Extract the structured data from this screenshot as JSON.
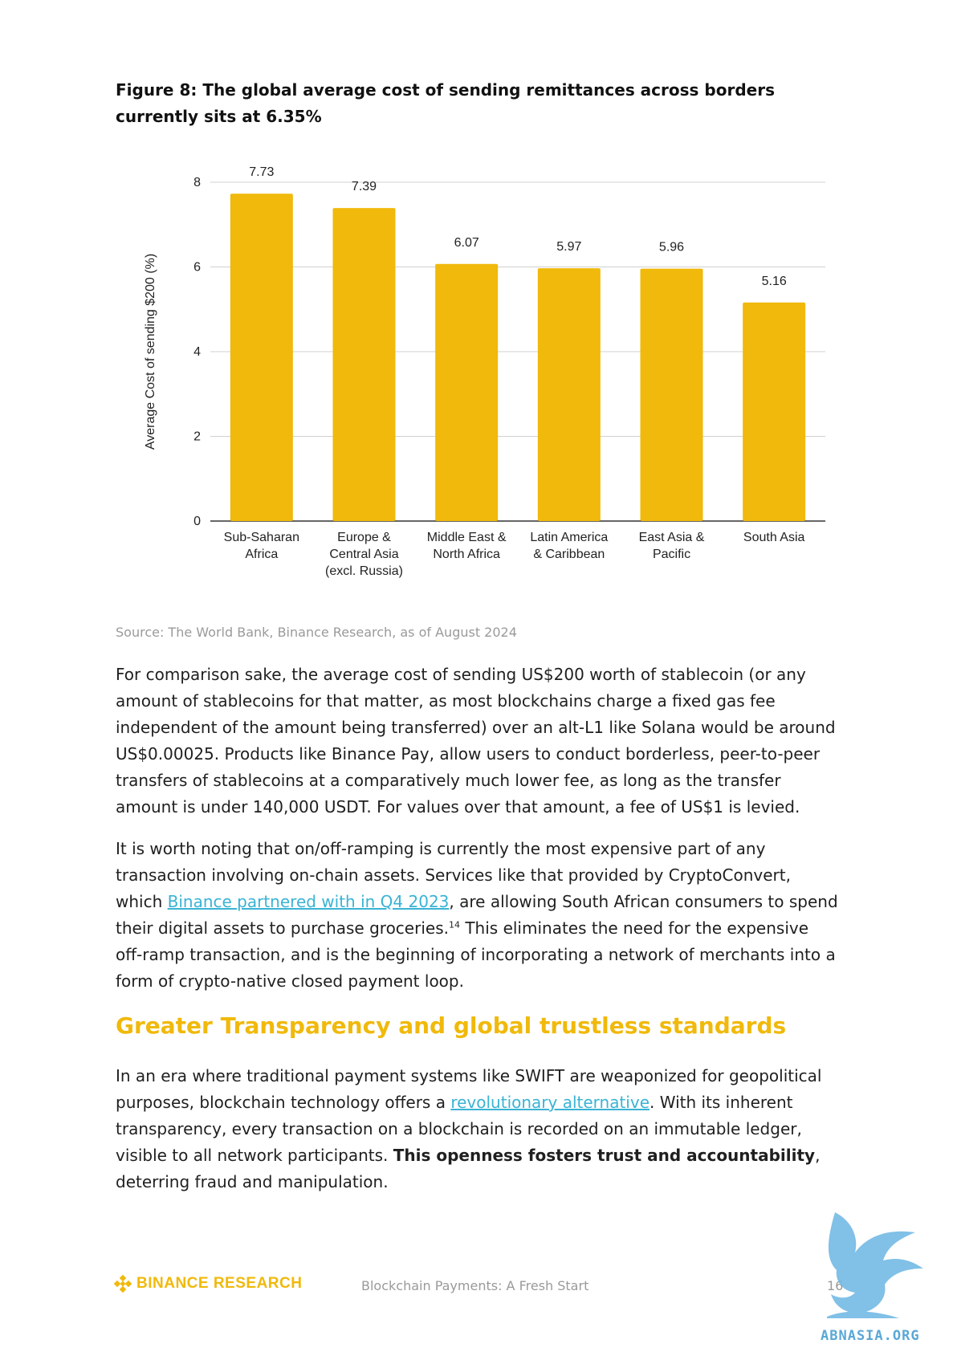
{
  "figure": {
    "title": "Figure 8: The global average cost of sending remittances across borders currently sits at 6.35%",
    "source": "Source: The World Bank, Binance Research, as of August 2024"
  },
  "chart_data": {
    "type": "bar",
    "categories": [
      [
        "Sub-Saharan",
        "Africa"
      ],
      [
        "Europe &",
        "Central Asia",
        "(excl. Russia)"
      ],
      [
        "Middle East &",
        "North Africa"
      ],
      [
        "Latin America",
        "& Caribbean"
      ],
      [
        "East Asia &",
        "Pacific"
      ],
      [
        "South Asia"
      ]
    ],
    "values": [
      7.73,
      7.39,
      6.07,
      5.97,
      5.96,
      5.16
    ],
    "value_labels": [
      "7.73",
      "7.39",
      "6.07",
      "5.97",
      "5.96",
      "5.16"
    ],
    "ylabel": "Average Cost of sending $200 (%)",
    "ylim": [
      0,
      8
    ],
    "yticks": [
      "0",
      "2",
      "4",
      "6",
      "8"
    ],
    "bar_color": "#f0b90b",
    "grid": true
  },
  "body": {
    "p1": "For comparison sake, the average cost of sending US$200 worth of stablecoin (or any amount of stablecoins for that matter, as most blockchains charge a fixed gas fee independent of the amount being transferred) over an alt-L1 like Solana would be  around US$0.00025. Products like Binance Pay, allow users to conduct borderless, peer-to-peer transfers of stablecoins at a comparatively much lower fee, as long as the transfer amount is under 140,000 USDT. For values over that amount, a fee of US$1 is levied.",
    "p2_a": "It is worth noting that on/off-ramping is currently the most expensive part of any transaction involving on-chain assets. Services like that provided by CryptoConvert, which ",
    "p2_link": "Binance partnered with in Q4 2023",
    "p2_b": ", are allowing South African consumers to spend their digital assets to purchase groceries.",
    "p2_sup": "14",
    "p2_c": " This eliminates the need for the expensive off-ramp transaction, and is the beginning of incorporating a network of merchants into a form of crypto-native closed payment loop.",
    "heading": "Greater Transparency and global trustless standards",
    "p3_a": "In an era where traditional payment systems like SWIFT are weaponized for geopolitical purposes, blockchain technology offers a ",
    "p3_link": "revolutionary alternative",
    "p3_b": ". With its inherent transparency, every transaction on a blockchain is recorded on an immutable ledger, visible to all network participants. ",
    "p3_bold": "This openness fosters trust and accountability",
    "p3_c": ", deterring fraud and manipulation."
  },
  "footer": {
    "logo_text": "BINANCE RESEARCH",
    "center": "Blockchain Payments: A Fresh Start",
    "page": "16"
  },
  "watermark": {
    "text": "ABNASIA.ORG"
  }
}
